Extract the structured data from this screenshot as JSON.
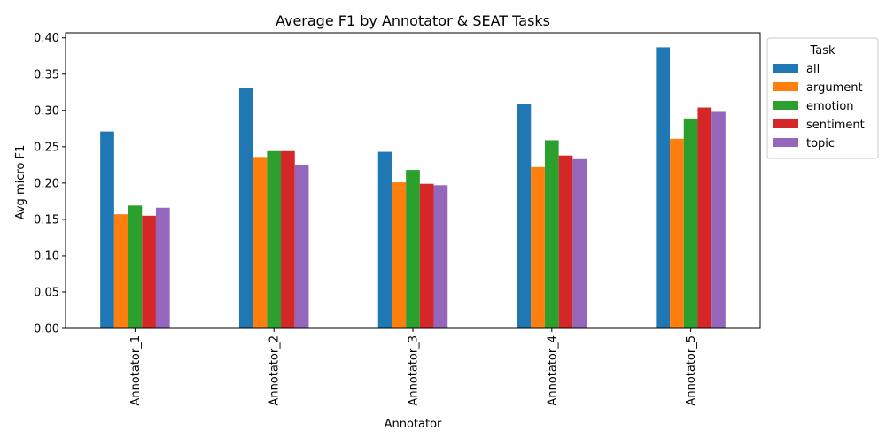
{
  "chart_data": {
    "type": "bar",
    "title": "Average F1 by Annotator & SEAT Tasks",
    "xlabel": "Annotator",
    "ylabel": "Avg micro F1",
    "ylim": [
      0,
      0.407
    ],
    "yticks": [
      0.0,
      0.05,
      0.1,
      0.15,
      0.2,
      0.25,
      0.3,
      0.35,
      0.4
    ],
    "ytick_labels": [
      "0.00",
      "0.05",
      "0.10",
      "0.15",
      "0.20",
      "0.25",
      "0.30",
      "0.35",
      "0.40"
    ],
    "categories": [
      "Annotator_1",
      "Annotator_2",
      "Annotator_3",
      "Annotator_4",
      "Annotator_5"
    ],
    "legend": {
      "title": "Task",
      "placement": "outside-right-top"
    },
    "grid": false,
    "series": [
      {
        "name": "all",
        "color": "#1f77b4",
        "values": [
          0.271,
          0.331,
          0.243,
          0.309,
          0.387
        ]
      },
      {
        "name": "argument",
        "color": "#ff7f0e",
        "values": [
          0.157,
          0.236,
          0.201,
          0.222,
          0.261
        ]
      },
      {
        "name": "emotion",
        "color": "#2ca02c",
        "values": [
          0.169,
          0.244,
          0.218,
          0.259,
          0.289
        ]
      },
      {
        "name": "sentiment",
        "color": "#d62728",
        "values": [
          0.155,
          0.244,
          0.199,
          0.238,
          0.304
        ]
      },
      {
        "name": "topic",
        "color": "#9467bd",
        "values": [
          0.166,
          0.225,
          0.197,
          0.233,
          0.298
        ]
      }
    ]
  }
}
